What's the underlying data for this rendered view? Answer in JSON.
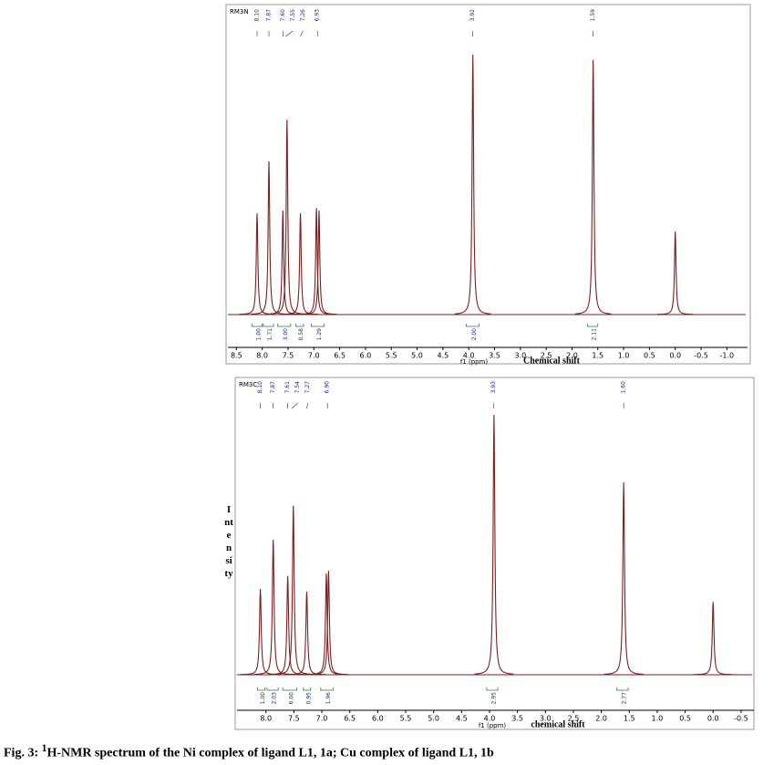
{
  "chart_data": [
    {
      "type": "line",
      "title": "RM3N",
      "xlabel": "f1 (ppm)",
      "xlabel2": "Chemical shift",
      "color": "#7a1f1f",
      "integral_color": "#2e7d32",
      "label_color": "#1a237e",
      "xlim": [
        8.7,
        -1.4
      ],
      "xticks": [
        8.5,
        {
          "value": 8,
          "label": "8.0"
        },
        7.5,
        {
          "value": 7,
          "label": "7.0"
        },
        6.5,
        {
          "value": 6,
          "label": "6.0"
        },
        5.5,
        {
          "value": 5,
          "label": "5.0"
        },
        4.5,
        {
          "value": 4,
          "label": "4.0"
        },
        3.5,
        {
          "value": 3,
          "label": "3.0"
        },
        2.5,
        {
          "value": 2,
          "label": "2.0"
        },
        1.5,
        {
          "value": 1,
          "label": "1.0"
        },
        0.5,
        {
          "value": 0,
          "label": "0.0"
        },
        -0.5,
        {
          "value": -1,
          "label": "-1.0"
        }
      ],
      "x": [
        8.1,
        7.87,
        7.6,
        7.52,
        7.26,
        6.95,
        6.9,
        3.92,
        1.59,
        0.0
      ],
      "values": [
        39,
        59,
        40,
        75,
        39,
        41,
        40,
        100,
        98,
        32
      ],
      "peak_labels": [
        {
          "value": 8.1,
          "label": "8.10"
        },
        {
          "value": 7.87,
          "label": "7.87"
        },
        {
          "value": 7.6,
          "label": "7.60"
        },
        {
          "value": 7.55,
          "label": "7.55"
        },
        {
          "value": 7.26,
          "label": "7.26"
        },
        {
          "value": 6.93,
          "label": "6.93"
        },
        {
          "value": 3.92,
          "label": "3.92"
        },
        {
          "value": 1.59,
          "label": "1.59"
        }
      ],
      "integrals": [
        {
          "from": 8.2,
          "to": 8.0,
          "value": 1,
          "label": "1.00"
        },
        {
          "from": 7.98,
          "to": 7.78,
          "value": 1.71,
          "label": "1.71"
        },
        {
          "from": 7.7,
          "to": 7.45,
          "value": 3,
          "label": "3.00"
        },
        {
          "from": 7.35,
          "to": 7.2,
          "value": 0.58,
          "label": "0.58"
        },
        {
          "from": 7.05,
          "to": 6.8,
          "value": 1.29,
          "label": "1.29"
        },
        {
          "from": 4.05,
          "to": 3.8,
          "value": 2,
          "label": "2.00"
        },
        {
          "from": 1.7,
          "to": 1.5,
          "value": 2.11,
          "label": "2.11"
        }
      ]
    },
    {
      "type": "line",
      "title": "RM3C",
      "xlabel": "f1 (ppm)",
      "xlabel2": "chemical shift",
      "ylabel": "Intensity",
      "color": "#7a1f1f",
      "integral_color": "#2e7d32",
      "label_color": "#1a237e",
      "xlim": [
        8.55,
        -0.73
      ],
      "xticks": [
        {
          "value": 8,
          "label": "8.0"
        },
        7.5,
        {
          "value": 7,
          "label": "7.0"
        },
        6.5,
        {
          "value": 6,
          "label": "6.0"
        },
        5.5,
        {
          "value": 5,
          "label": "5.0"
        },
        4.5,
        {
          "value": 4,
          "label": "4.0"
        },
        3.5,
        {
          "value": 3,
          "label": "3.0"
        },
        2.5,
        {
          "value": 2,
          "label": "2.0"
        },
        1.5,
        {
          "value": 1,
          "label": "1.0"
        },
        0.5,
        {
          "value": 0,
          "label": "0.0"
        },
        -0.5
      ],
      "x": [
        8.1,
        7.87,
        7.61,
        7.51,
        7.27,
        6.92,
        6.88,
        3.92,
        1.6,
        0.0
      ],
      "values": [
        33,
        52,
        38,
        65,
        32,
        39,
        40,
        100,
        74,
        28
      ],
      "peak_labels": [
        {
          "value": 8.1,
          "label": "8.10"
        },
        {
          "value": 7.87,
          "label": "7.87"
        },
        {
          "value": 7.61,
          "label": "7.61"
        },
        {
          "value": 7.54,
          "label": "7.54"
        },
        {
          "value": 7.27,
          "label": "7.27"
        },
        {
          "value": 6.9,
          "label": "6.90"
        },
        {
          "value": 3.93,
          "label": "3.93"
        },
        {
          "value": 1.6,
          "label": "1.60"
        }
      ],
      "integrals": [
        {
          "from": 8.15,
          "to": 8.02,
          "value": 1,
          "label": "1.00"
        },
        {
          "from": 7.98,
          "to": 7.78,
          "value": 2.03,
          "label": "2.03"
        },
        {
          "from": 7.7,
          "to": 7.45,
          "value": 6,
          "label": "6.00"
        },
        {
          "from": 7.33,
          "to": 7.2,
          "value": 0.95,
          "label": "0.95"
        },
        {
          "from": 7.02,
          "to": 6.8,
          "value": 1.96,
          "label": "1.96"
        },
        {
          "from": 4.05,
          "to": 3.85,
          "value": 2.95,
          "label": "2.95"
        },
        {
          "from": 1.72,
          "to": 1.52,
          "value": 2.77,
          "label": "2.77"
        }
      ]
    }
  ],
  "caption": {
    "prefix": "Fig. 3: ",
    "sup": "1",
    "text": "H-NMR spectrum of the Ni complex of ligand L1, 1a; Cu complex of ligand L1, 1b"
  }
}
